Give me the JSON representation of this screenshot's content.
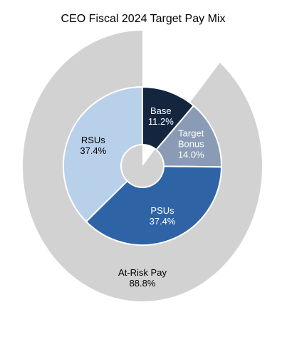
{
  "chart_data": {
    "type": "pie",
    "title": "CEO Fiscal 2024 Target Pay Mix",
    "categories": [
      "Base",
      "Target Bonus",
      "PSUs",
      "RSUs"
    ],
    "values": [
      11.2,
      14.0,
      37.4,
      37.4
    ],
    "value_labels": [
      "11.2%",
      "14.0%",
      "37.4%",
      "37.4%"
    ],
    "colors": [
      "#14253f",
      "#8a9bb5",
      "#2e64a6",
      "#b9d0ea"
    ],
    "outer": {
      "categories": [
        "At-Risk Pay"
      ],
      "values": [
        88.8
      ],
      "value_labels": [
        "88.8%"
      ],
      "color": "#d3d2d2"
    }
  }
}
